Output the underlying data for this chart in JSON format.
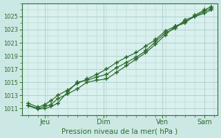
{
  "background_color": "#cce8e4",
  "plot_bg_color": "#d8f0ee",
  "grid_color": "#aaccc8",
  "line_color": "#2d6b2d",
  "title": "Pression niveau de la mer( hPa )",
  "ylabel_ticks": [
    1011,
    1013,
    1015,
    1017,
    1019,
    1021,
    1023,
    1025
  ],
  "ylim": [
    1010.0,
    1027.0
  ],
  "xlim": [
    -4,
    116
  ],
  "xtick_positions": [
    10,
    46,
    82,
    108
  ],
  "xtick_labels": [
    "Jeu",
    "Dim",
    "Ven",
    "Sam"
  ],
  "series": [
    {
      "x": [
        0,
        6,
        10,
        14,
        18,
        24,
        30,
        36,
        42,
        48,
        54,
        60,
        66,
        72,
        78,
        84,
        90,
        96,
        102,
        108,
        112
      ],
      "y": [
        1011.5,
        1011.0,
        1011.3,
        1011.6,
        1012.5,
        1013.2,
        1014.0,
        1015.0,
        1015.3,
        1015.5,
        1016.5,
        1017.5,
        1018.5,
        1019.5,
        1020.8,
        1022.2,
        1023.5,
        1024.2,
        1025.0,
        1025.8,
        1026.2
      ]
    },
    {
      "x": [
        0,
        6,
        10,
        14,
        18,
        24,
        30,
        36,
        42,
        48,
        54,
        60,
        66,
        72,
        78,
        84,
        90,
        96,
        102,
        108,
        112
      ],
      "y": [
        1011.8,
        1011.2,
        1011.6,
        1012.2,
        1013.0,
        1013.8,
        1014.8,
        1015.5,
        1016.2,
        1017.0,
        1018.0,
        1018.8,
        1019.5,
        1020.5,
        1021.5,
        1022.8,
        1023.5,
        1024.0,
        1025.2,
        1026.0,
        1026.5
      ]
    },
    {
      "x": [
        0,
        6,
        10,
        14,
        18,
        24,
        30,
        36,
        42,
        48,
        54,
        60,
        66,
        72,
        78,
        84,
        90,
        96,
        102,
        108,
        112
      ],
      "y": [
        1011.4,
        1010.9,
        1011.0,
        1011.3,
        1011.8,
        1013.5,
        1015.0,
        1015.3,
        1015.8,
        1016.2,
        1017.2,
        1018.0,
        1018.8,
        1019.8,
        1021.2,
        1022.5,
        1023.2,
        1024.5,
        1025.0,
        1025.5,
        1026.0
      ]
    }
  ]
}
